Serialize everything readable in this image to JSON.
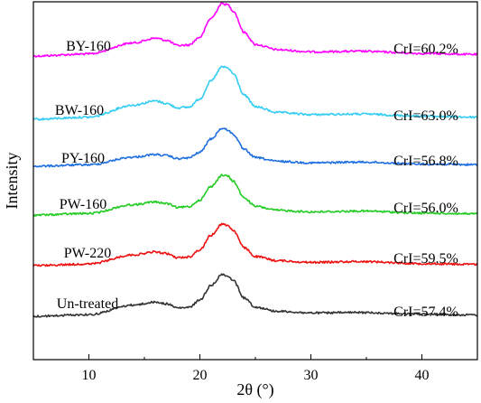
{
  "chart_data": {
    "type": "line",
    "title": "",
    "xlabel": "2θ (°)",
    "ylabel": "Intensity",
    "xlim": [
      5,
      45
    ],
    "xticks": [
      10,
      20,
      30,
      40
    ],
    "yticks": false,
    "grid": false,
    "legend": "none",
    "series": [
      {
        "name": "BY-160",
        "annotation": "CrI=60.2%",
        "color": "#ff00ff",
        "x": [
          5,
          10,
          14,
          16,
          17,
          18,
          19,
          20,
          21,
          22,
          22.5,
          23,
          24,
          25,
          27,
          30,
          34.5,
          40,
          45
        ],
        "y": [
          0.0,
          0.04,
          0.25,
          0.34,
          0.3,
          0.2,
          0.21,
          0.36,
          0.72,
          1.0,
          0.98,
          0.86,
          0.45,
          0.22,
          0.12,
          0.08,
          0.09,
          0.05,
          0.03
        ]
      },
      {
        "name": "BW-160",
        "annotation": "CrI=63.0%",
        "color": "#33ccf2",
        "x": [
          5,
          10,
          14,
          16,
          17,
          18,
          19,
          20,
          21,
          22,
          22.5,
          23,
          24,
          25,
          27,
          30,
          34.5,
          40,
          45
        ],
        "y": [
          0.0,
          0.04,
          0.27,
          0.35,
          0.3,
          0.22,
          0.23,
          0.39,
          0.73,
          1.0,
          0.98,
          0.87,
          0.46,
          0.24,
          0.13,
          0.09,
          0.1,
          0.06,
          0.04
        ]
      },
      {
        "name": "PY-160",
        "annotation": "CrI=56.8%",
        "color": "#1f6fe0",
        "x": [
          5,
          10,
          14,
          16,
          17,
          18,
          19,
          20,
          21,
          22,
          22.5,
          23,
          24,
          25,
          27,
          30,
          34.5,
          40,
          45
        ],
        "y": [
          0.0,
          0.04,
          0.24,
          0.31,
          0.28,
          0.2,
          0.22,
          0.37,
          0.72,
          1.0,
          0.96,
          0.84,
          0.44,
          0.23,
          0.13,
          0.09,
          0.11,
          0.06,
          0.04
        ]
      },
      {
        "name": "PW-160",
        "annotation": "CrI=56.0%",
        "color": "#22cc22",
        "x": [
          5,
          10,
          14,
          16,
          17,
          18,
          19,
          20,
          21,
          22,
          22.5,
          23,
          24,
          25,
          27,
          30,
          34.5,
          40,
          45
        ],
        "y": [
          0.0,
          0.04,
          0.26,
          0.33,
          0.29,
          0.19,
          0.21,
          0.38,
          0.72,
          1.0,
          0.98,
          0.85,
          0.43,
          0.22,
          0.12,
          0.08,
          0.1,
          0.05,
          0.03
        ]
      },
      {
        "name": "PW-220",
        "annotation": "CrI=59.5%",
        "color": "#ee1111",
        "x": [
          5,
          10,
          14,
          16,
          17,
          18,
          19,
          20,
          21,
          22,
          22.5,
          23,
          24,
          25,
          27,
          30,
          34.5,
          40,
          45
        ],
        "y": [
          0.0,
          0.04,
          0.26,
          0.33,
          0.29,
          0.19,
          0.21,
          0.38,
          0.73,
          1.0,
          0.97,
          0.85,
          0.43,
          0.22,
          0.12,
          0.08,
          0.1,
          0.05,
          0.03
        ]
      },
      {
        "name": "Un-treated",
        "annotation": "CrI=57.4%",
        "color": "#333333",
        "x": [
          5,
          10,
          14,
          16,
          17,
          18,
          19,
          20,
          21,
          22,
          22.5,
          23,
          24,
          25,
          27,
          30,
          34.5,
          40,
          45
        ],
        "y": [
          0.0,
          0.04,
          0.27,
          0.34,
          0.3,
          0.2,
          0.21,
          0.39,
          0.74,
          1.0,
          0.98,
          0.86,
          0.44,
          0.22,
          0.12,
          0.08,
          0.09,
          0.05,
          0.03
        ]
      }
    ]
  }
}
